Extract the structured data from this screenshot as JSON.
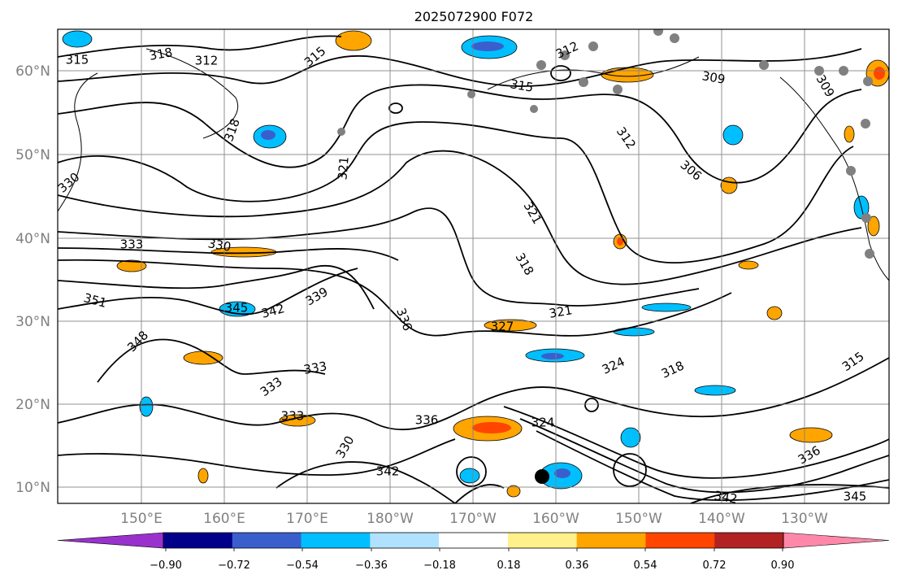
{
  "title": "2025072900 F072",
  "map": {
    "lon_ticks": [
      "150°E",
      "160°E",
      "170°E",
      "180°W",
      "170°W",
      "160°W",
      "150°W",
      "140°W",
      "130°W"
    ],
    "lat_ticks": [
      "60°N",
      "50°N",
      "40°N",
      "30°N",
      "20°N",
      "10°N"
    ],
    "gridlines": true
  },
  "contour_labels": [
    "315",
    "318",
    "312",
    "315",
    "309",
    "312",
    "315",
    "309",
    "318",
    "321",
    "312",
    "306",
    "321",
    "318",
    "330",
    "333",
    "351",
    "345",
    "342",
    "339",
    "336",
    "327",
    "324",
    "321",
    "318",
    "315",
    "348",
    "333",
    "333",
    "333",
    "324",
    "336",
    "330",
    "342",
    "336",
    "342",
    "345",
    "330"
  ],
  "colorbar": {
    "ticks": [
      "−0.90",
      "−0.72",
      "−0.54",
      "−0.36",
      "−0.18",
      "0.18",
      "0.36",
      "0.54",
      "0.72",
      "0.90"
    ],
    "colors": [
      "#9932cc",
      "#00008b",
      "#3a5fcd",
      "#00bfff",
      "#b0e2ff",
      "#ffffff",
      "#fff08c",
      "#ffa500",
      "#ff4500",
      "#b22222",
      "#ff88aa"
    ],
    "extend": "both"
  }
}
